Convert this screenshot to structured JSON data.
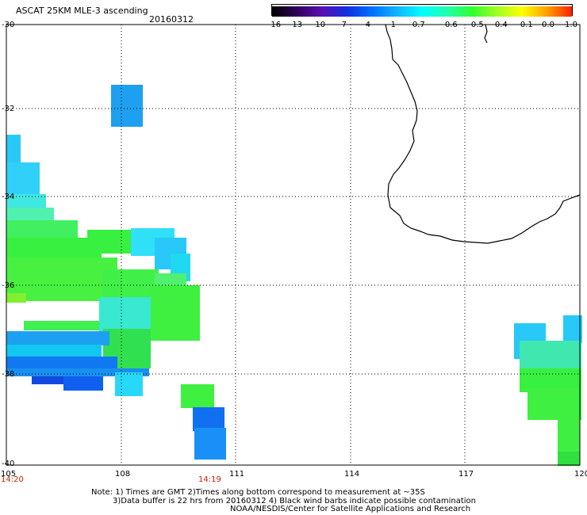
{
  "header": {
    "title": "ASCAT 25KM MLE-3 ascending",
    "date": "20160312"
  },
  "colorbar": {
    "labels": [
      "-16",
      "-13",
      "-10",
      "-7",
      "-4",
      "-1",
      "-0.7",
      "-0.6",
      "-0.5",
      "-0.4",
      "-0.1",
      "0.0",
      "1.0"
    ],
    "colors": [
      "#000000",
      "#30005a",
      "#5a10b4",
      "#1030e0",
      "#0070ff",
      "#10b4ff",
      "#00ffff",
      "#20ffb0",
      "#30ff30",
      "#a0ff20",
      "#ffff00",
      "#ffa000",
      "#ff2000"
    ]
  },
  "axes": {
    "lat_labels": [
      "-30",
      "-32",
      "-34",
      "-36",
      "-38",
      "-40"
    ],
    "lon_labels": [
      "105",
      "108",
      "111",
      "114",
      "117",
      "120"
    ],
    "time_labels": [
      "14:20",
      "14:19"
    ]
  },
  "notes": [
    "Note: 1) Times are GMT 2)Times along bottom correspond to measurement at ~35S",
    "3)Data buffer is 22 hrs from 20160312 4) Black wind barbs indicate possible contamination",
    "NOAA/NESDIS/Center for Satellite Applications and Research"
  ]
}
